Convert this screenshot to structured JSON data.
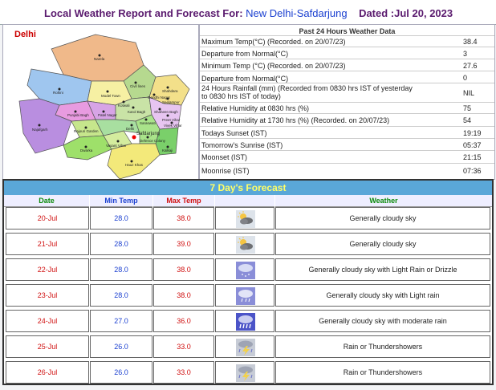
{
  "header": {
    "prefix": "Local Weather Report and Forecast For:",
    "location": "New Delhi-Safdarjung",
    "date_label": "Dated :Jul 20, 2023"
  },
  "map": {
    "title": "Delhi",
    "districts": [
      "Narela",
      "Rohini",
      "Civil lines",
      "Model Town",
      "Shahdara",
      "Seelampur",
      "Punjabi Bagh",
      "Patel Nagar",
      "Karol Bagh",
      "Preet Vihar",
      "Najafgarh",
      "Rajouri Garden",
      "Delhi",
      "Dwarka",
      "Vasant Vihar",
      "Safdarjung",
      "Defence Colony",
      "Kalkaji",
      "Hauz Khas",
      "Saraswati",
      "Kotwali",
      "Shaheen Bagh",
      "Vivek Vihar",
      "Gandhi Nagar"
    ]
  },
  "observations": {
    "title": "Past 24 Hours Weather Data",
    "rows": [
      {
        "label": "Maximum Temp(°C) (Recorded. on 20/07/23)",
        "value": "38.4"
      },
      {
        "label": "Departure from Normal(°C)",
        "value": "3"
      },
      {
        "label": "Minimum Temp (°C) (Recorded. on 20/07/23)",
        "value": "27.6"
      },
      {
        "label": "Departure from Normal(°C)",
        "value": "0"
      },
      {
        "label": "24 Hours Rainfall (mm) (Recorded from 0830 hrs IST of yesterday to 0830 hrs IST of today)",
        "value": "NIL"
      },
      {
        "label": "Relative Humidity at 0830 hrs (%)",
        "value": "75"
      },
      {
        "label": "Relative Humidity at 1730 hrs (%) (Recorded. on 20/07/23)",
        "value": "54"
      },
      {
        "label": "Todays Sunset (IST)",
        "value": "19:19"
      },
      {
        "label": "Tomorrow's Sunrise (IST)",
        "value": "05:37"
      },
      {
        "label": "Moonset (IST)",
        "value": "21:15"
      },
      {
        "label": "Moonrise (IST)",
        "value": "07:36"
      }
    ]
  },
  "forecast": {
    "title": "7 Day's Forecast",
    "headers": {
      "date": "Date",
      "min": "Min Temp",
      "max": "Max Temp",
      "weather": "Weather"
    },
    "rows": [
      {
        "date": "20-Jul",
        "min": "28.0",
        "max": "38.0",
        "icon": "cloudy-sun-icon",
        "weather": "Generally cloudy sky"
      },
      {
        "date": "21-Jul",
        "min": "28.0",
        "max": "39.0",
        "icon": "cloudy-sun-icon",
        "weather": "Generally cloudy sky"
      },
      {
        "date": "22-Jul",
        "min": "28.0",
        "max": "38.0",
        "icon": "drizzle-icon",
        "weather": "Generally cloudy sky with Light Rain or Drizzle"
      },
      {
        "date": "23-Jul",
        "min": "28.0",
        "max": "38.0",
        "icon": "light-rain-icon",
        "weather": "Generally cloudy sky with Light rain"
      },
      {
        "date": "24-Jul",
        "min": "27.0",
        "max": "36.0",
        "icon": "moderate-rain-icon",
        "weather": "Generally cloudy sky with moderate rain"
      },
      {
        "date": "25-Jul",
        "min": "26.0",
        "max": "33.0",
        "icon": "thunderstorm-icon",
        "weather": "Rain or Thundershowers"
      },
      {
        "date": "26-Jul",
        "min": "26.0",
        "max": "33.0",
        "icon": "thunderstorm-icon",
        "weather": "Rain or Thundershowers"
      }
    ]
  },
  "colors": {
    "accent": "#5aa7d8",
    "title_yellow": "#ffff66",
    "header_purple": "#5a1a6e",
    "link_blue": "#1a3fd0",
    "red": "#d01010",
    "green": "#0a8a0a"
  }
}
